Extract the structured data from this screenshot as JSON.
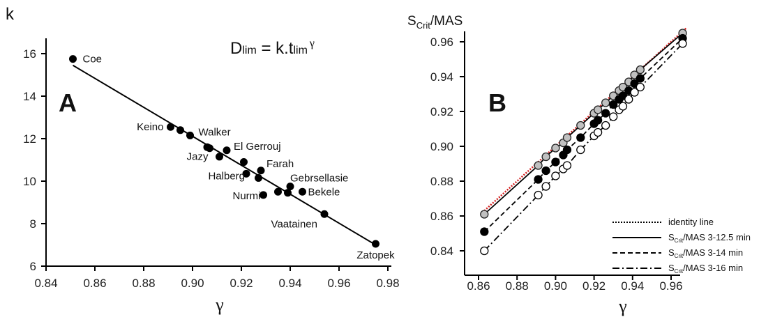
{
  "figure": {
    "panel_a_letter": "A",
    "panel_b_letter": "B",
    "equation": {
      "lhs_main": "D",
      "lhs_sub": "lim",
      "mid": " = k.t",
      "rhs_sub": "lim",
      "exponent": "γ"
    }
  },
  "chart_data": [
    {
      "type": "scatter",
      "xlabel": "γ",
      "ylabel": "k",
      "xlim": [
        0.84,
        0.98
      ],
      "ylim": [
        6,
        16
      ],
      "xticks": [
        "0.84",
        "0.86",
        "0.88",
        "0.90",
        "0.92",
        "0.94",
        "0.96",
        "0.98"
      ],
      "yticks": [
        "6",
        "8",
        "10",
        "12",
        "14",
        "16"
      ],
      "grid": false,
      "points": [
        {
          "x": 0.851,
          "y": 15.75
        },
        {
          "x": 0.891,
          "y": 12.55
        },
        {
          "x": 0.895,
          "y": 12.4
        },
        {
          "x": 0.899,
          "y": 12.15
        },
        {
          "x": 0.906,
          "y": 11.6
        },
        {
          "x": 0.907,
          "y": 11.55
        },
        {
          "x": 0.911,
          "y": 11.15
        },
        {
          "x": 0.914,
          "y": 11.45
        },
        {
          "x": 0.921,
          "y": 10.9
        },
        {
          "x": 0.922,
          "y": 10.35
        },
        {
          "x": 0.927,
          "y": 10.15
        },
        {
          "x": 0.928,
          "y": 10.5
        },
        {
          "x": 0.929,
          "y": 9.35
        },
        {
          "x": 0.935,
          "y": 9.5
        },
        {
          "x": 0.939,
          "y": 9.45
        },
        {
          "x": 0.94,
          "y": 9.75
        },
        {
          "x": 0.945,
          "y": 9.5
        },
        {
          "x": 0.954,
          "y": 8.45
        },
        {
          "x": 0.975,
          "y": 7.05
        }
      ],
      "labels": [
        {
          "text": "Coe",
          "x": 0.851,
          "y": 15.75
        },
        {
          "text": "Keino",
          "x": 0.891,
          "y": 12.55
        },
        {
          "text": "Walker",
          "x": 0.899,
          "y": 12.15
        },
        {
          "text": "El Gerrouj",
          "x": 0.914,
          "y": 11.45
        },
        {
          "text": "Jazy",
          "x": 0.907,
          "y": 11.55
        },
        {
          "text": "Farah",
          "x": 0.928,
          "y": 10.5
        },
        {
          "text": "Halberg",
          "x": 0.922,
          "y": 10.35
        },
        {
          "text": "Gebrsellasie",
          "x": 0.94,
          "y": 9.75
        },
        {
          "text": "Nurmi",
          "x": 0.929,
          "y": 9.35
        },
        {
          "text": "Bekele",
          "x": 0.945,
          "y": 9.5
        },
        {
          "text": "Vaatainen",
          "x": 0.954,
          "y": 8.45
        },
        {
          "text": "Zatopek",
          "x": 0.975,
          "y": 7.05
        }
      ],
      "fit_line": {
        "x": [
          0.851,
          0.975
        ],
        "y": [
          15.45,
          7.0
        ]
      }
    },
    {
      "type": "line",
      "xlabel": "γ",
      "ylabel_main": "S",
      "ylabel_sub": "Crit",
      "ylabel_tail": "/MAS",
      "xlim": [
        0.855,
        0.97
      ],
      "ylim": [
        0.83,
        0.97
      ],
      "xticks": [
        "0.86",
        "0.88",
        "0.90",
        "0.92",
        "0.94",
        "0.96"
      ],
      "yticks": [
        "0.84",
        "0.86",
        "0.88",
        "0.90",
        "0.92",
        "0.94",
        "0.96"
      ],
      "grid": false,
      "legend_position": "bottom-right",
      "series": [
        {
          "name": "identity line",
          "style": "dotted",
          "color": "#d42020",
          "x": [
            0.863,
            0.968
          ],
          "y": [
            0.863,
            0.968
          ]
        },
        {
          "name_main": "S",
          "name_sub": "Crit",
          "name_tail": "/MAS 3-12.5 min",
          "style": "solid",
          "marker": "grey",
          "x": [
            0.863,
            0.891,
            0.895,
            0.9,
            0.904,
            0.906,
            0.913,
            0.92,
            0.922,
            0.926,
            0.93,
            0.933,
            0.935,
            0.938,
            0.941,
            0.944,
            0.966
          ],
          "y": [
            0.861,
            0.889,
            0.894,
            0.899,
            0.902,
            0.905,
            0.912,
            0.919,
            0.921,
            0.925,
            0.929,
            0.932,
            0.934,
            0.937,
            0.941,
            0.944,
            0.965
          ]
        },
        {
          "name_main": "S",
          "name_sub": "Crit",
          "name_tail": "/MAS 3-14 min",
          "style": "dashed",
          "marker": "black",
          "x": [
            0.863,
            0.891,
            0.895,
            0.9,
            0.904,
            0.906,
            0.913,
            0.92,
            0.922,
            0.926,
            0.93,
            0.933,
            0.935,
            0.938,
            0.941,
            0.944,
            0.966
          ],
          "y": [
            0.851,
            0.881,
            0.886,
            0.891,
            0.895,
            0.898,
            0.905,
            0.913,
            0.915,
            0.919,
            0.924,
            0.927,
            0.929,
            0.932,
            0.936,
            0.939,
            0.962
          ]
        },
        {
          "name_main": "S",
          "name_sub": "Crit",
          "name_tail": "/MAS 3-16 min",
          "style": "dashdot",
          "marker": "open",
          "x": [
            0.863,
            0.891,
            0.895,
            0.9,
            0.904,
            0.906,
            0.913,
            0.92,
            0.922,
            0.926,
            0.93,
            0.933,
            0.935,
            0.938,
            0.941,
            0.944,
            0.966
          ],
          "y": [
            0.84,
            0.872,
            0.877,
            0.883,
            0.887,
            0.889,
            0.898,
            0.906,
            0.908,
            0.912,
            0.917,
            0.921,
            0.923,
            0.927,
            0.931,
            0.934,
            0.959
          ]
        }
      ]
    }
  ]
}
